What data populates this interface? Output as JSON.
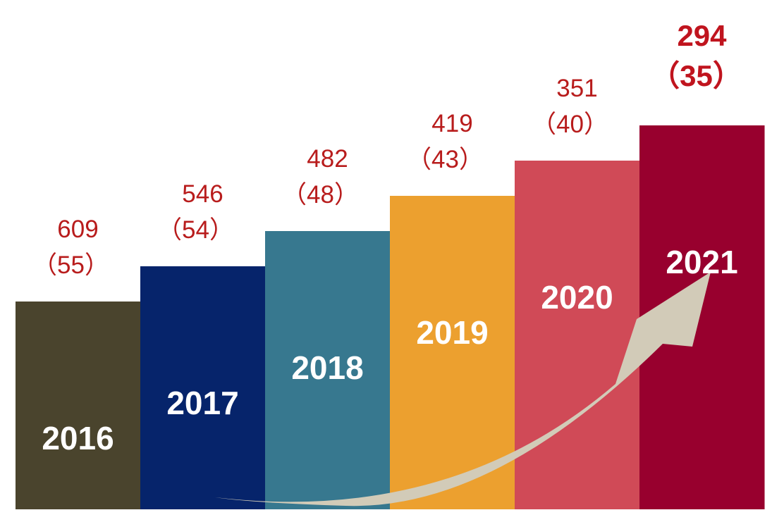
{
  "chart_data": {
    "type": "bar",
    "categories": [
      "2016",
      "2017",
      "2018",
      "2019",
      "2020",
      "2021"
    ],
    "values": [
      55,
      54,
      48,
      43,
      40,
      35
    ],
    "values_secondary": [
      609,
      546,
      482,
      419,
      351,
      294
    ],
    "value_labels": [
      "609",
      "546",
      "482",
      "419",
      "351",
      "294"
    ],
    "sub_labels": [
      "（55）",
      "（54）",
      "（48）",
      "（43）",
      "（40）",
      "（35）"
    ],
    "bar_colors": [
      "#4a442d",
      "#06246b",
      "#37788f",
      "#eca02f",
      "#d04a57",
      "#98002e"
    ],
    "arrow_color": "#d2cbb8",
    "label_color": "#b81c1c",
    "highlight_index": 5,
    "title": "",
    "xlabel": "",
    "ylabel": ""
  }
}
